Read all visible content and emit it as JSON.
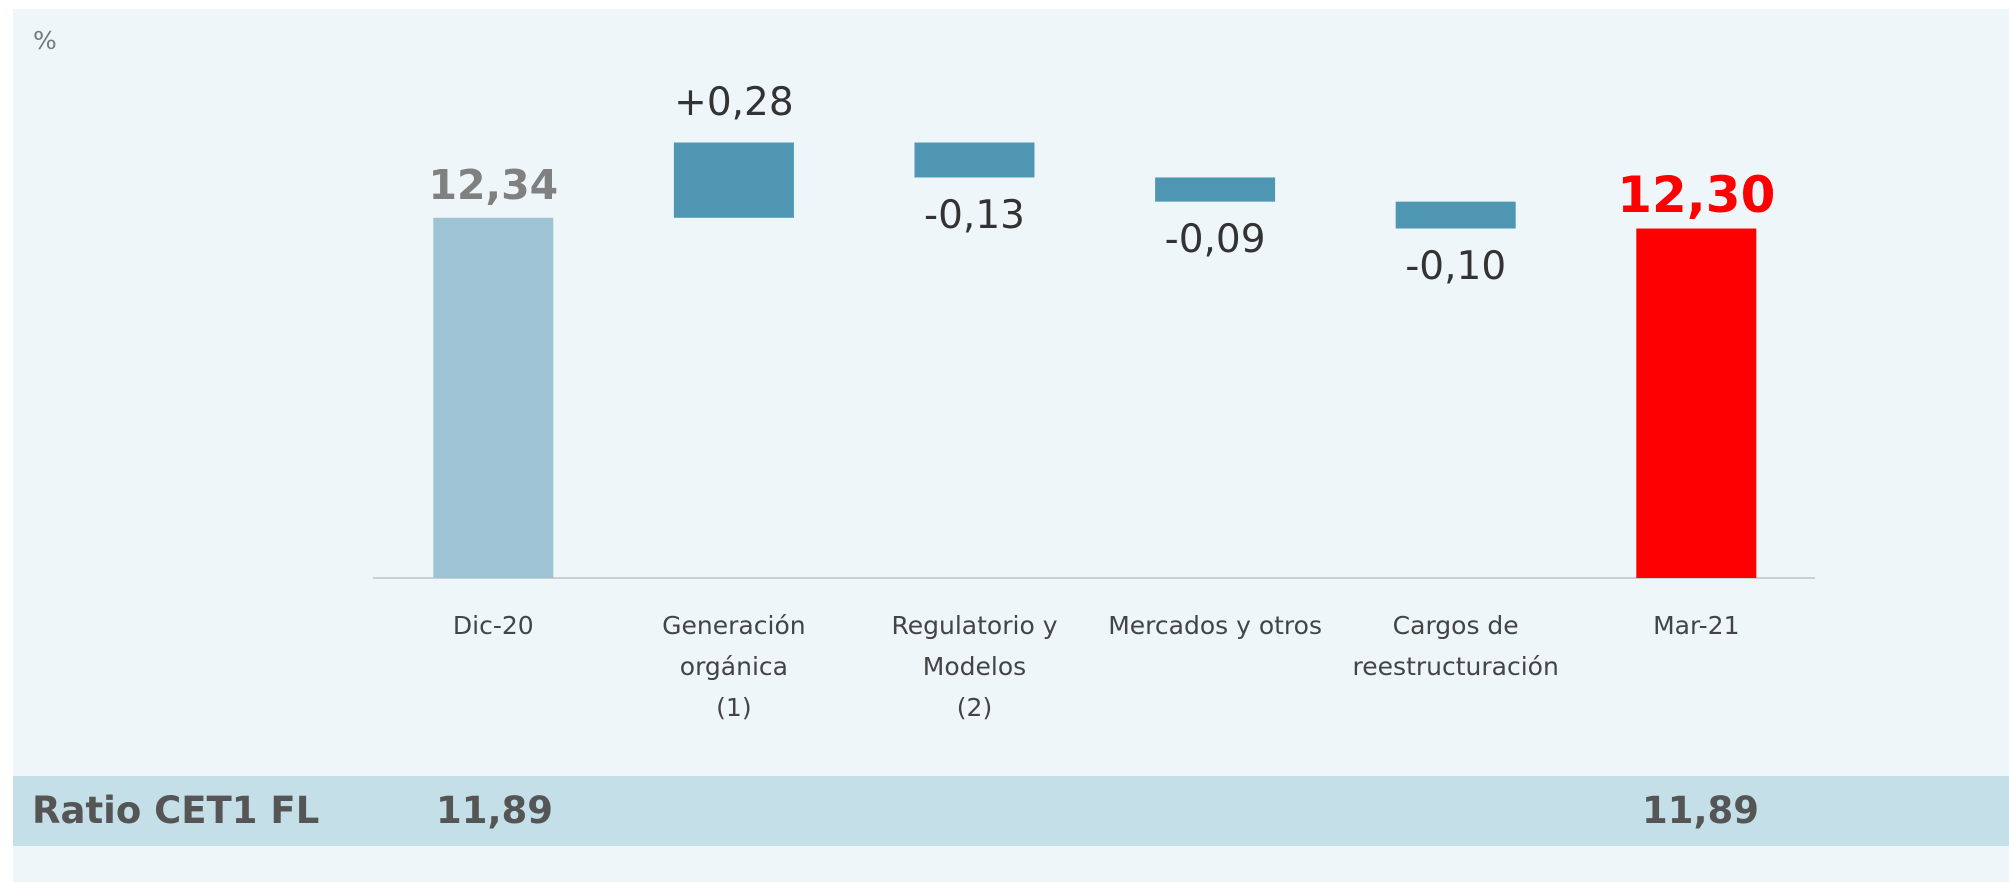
{
  "chart_data": {
    "type": "waterfall",
    "unit_label": "%",
    "categories": [
      "Dic-20",
      "Generación\norgánica\n(1)",
      "Regulatorio y\nModelos\n(2)",
      "Mercados y otros",
      "Cargos de\nreestructuración",
      "Mar-21"
    ],
    "measures": [
      "total",
      "relative",
      "relative",
      "relative",
      "relative",
      "total"
    ],
    "values": [
      12.34,
      0.28,
      -0.13,
      -0.09,
      -0.1,
      12.3
    ],
    "value_labels": [
      "12,34",
      "+0,28",
      "-0,13",
      "-0,09",
      "-0,10",
      "12,30"
    ],
    "colors": [
      "#9dc3d4",
      "#4f96b3",
      "#4f96b3",
      "#4f96b3",
      "#4f96b3",
      "#ff0000"
    ],
    "label_colors": [
      "#808080",
      "#333333",
      "#333333",
      "#333333",
      "#333333",
      "#ff0000"
    ],
    "ylim": [
      11,
      12.7
    ],
    "footer": {
      "label": "Ratio CET1 FL",
      "cells": [
        "11,89",
        "11,89"
      ]
    }
  }
}
